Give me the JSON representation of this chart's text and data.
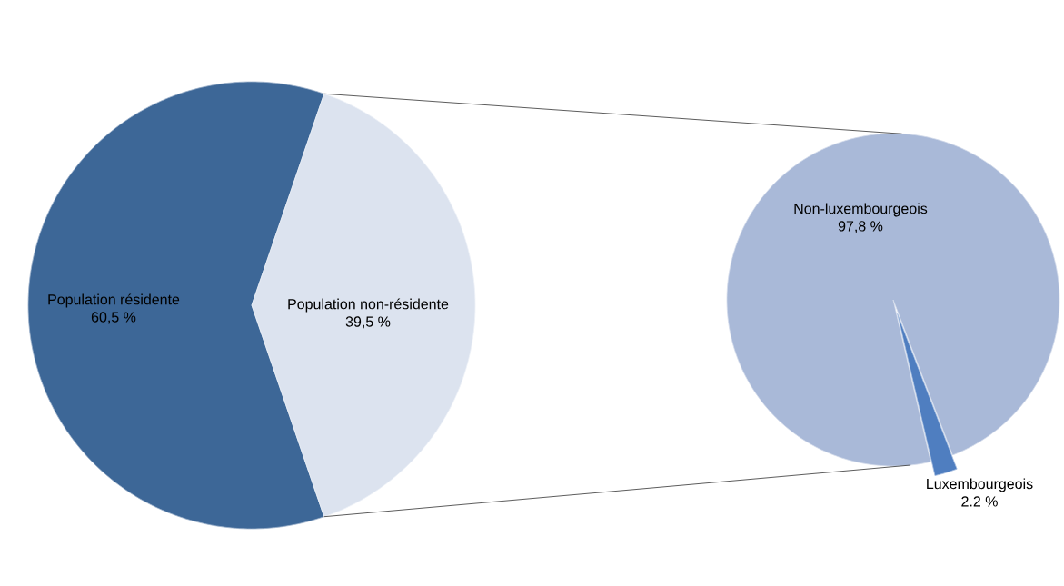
{
  "chart_data": [
    {
      "type": "pie",
      "categories": [
        "Population résidente",
        "Population non-résidente"
      ],
      "values": [
        60.5,
        39.5
      ],
      "colors": [
        "#3d6797",
        "#dce3ef"
      ],
      "value_labels": [
        "60,5 %",
        "39,5 %"
      ]
    },
    {
      "type": "pie",
      "categories": [
        "Non-luxembourgeois",
        "Luxembourgeois"
      ],
      "values": [
        97.8,
        2.2
      ],
      "colors": [
        "#a9b9d8",
        "#4f7ec0"
      ],
      "value_labels": [
        "97,8 %",
        "2.2 %"
      ]
    }
  ]
}
